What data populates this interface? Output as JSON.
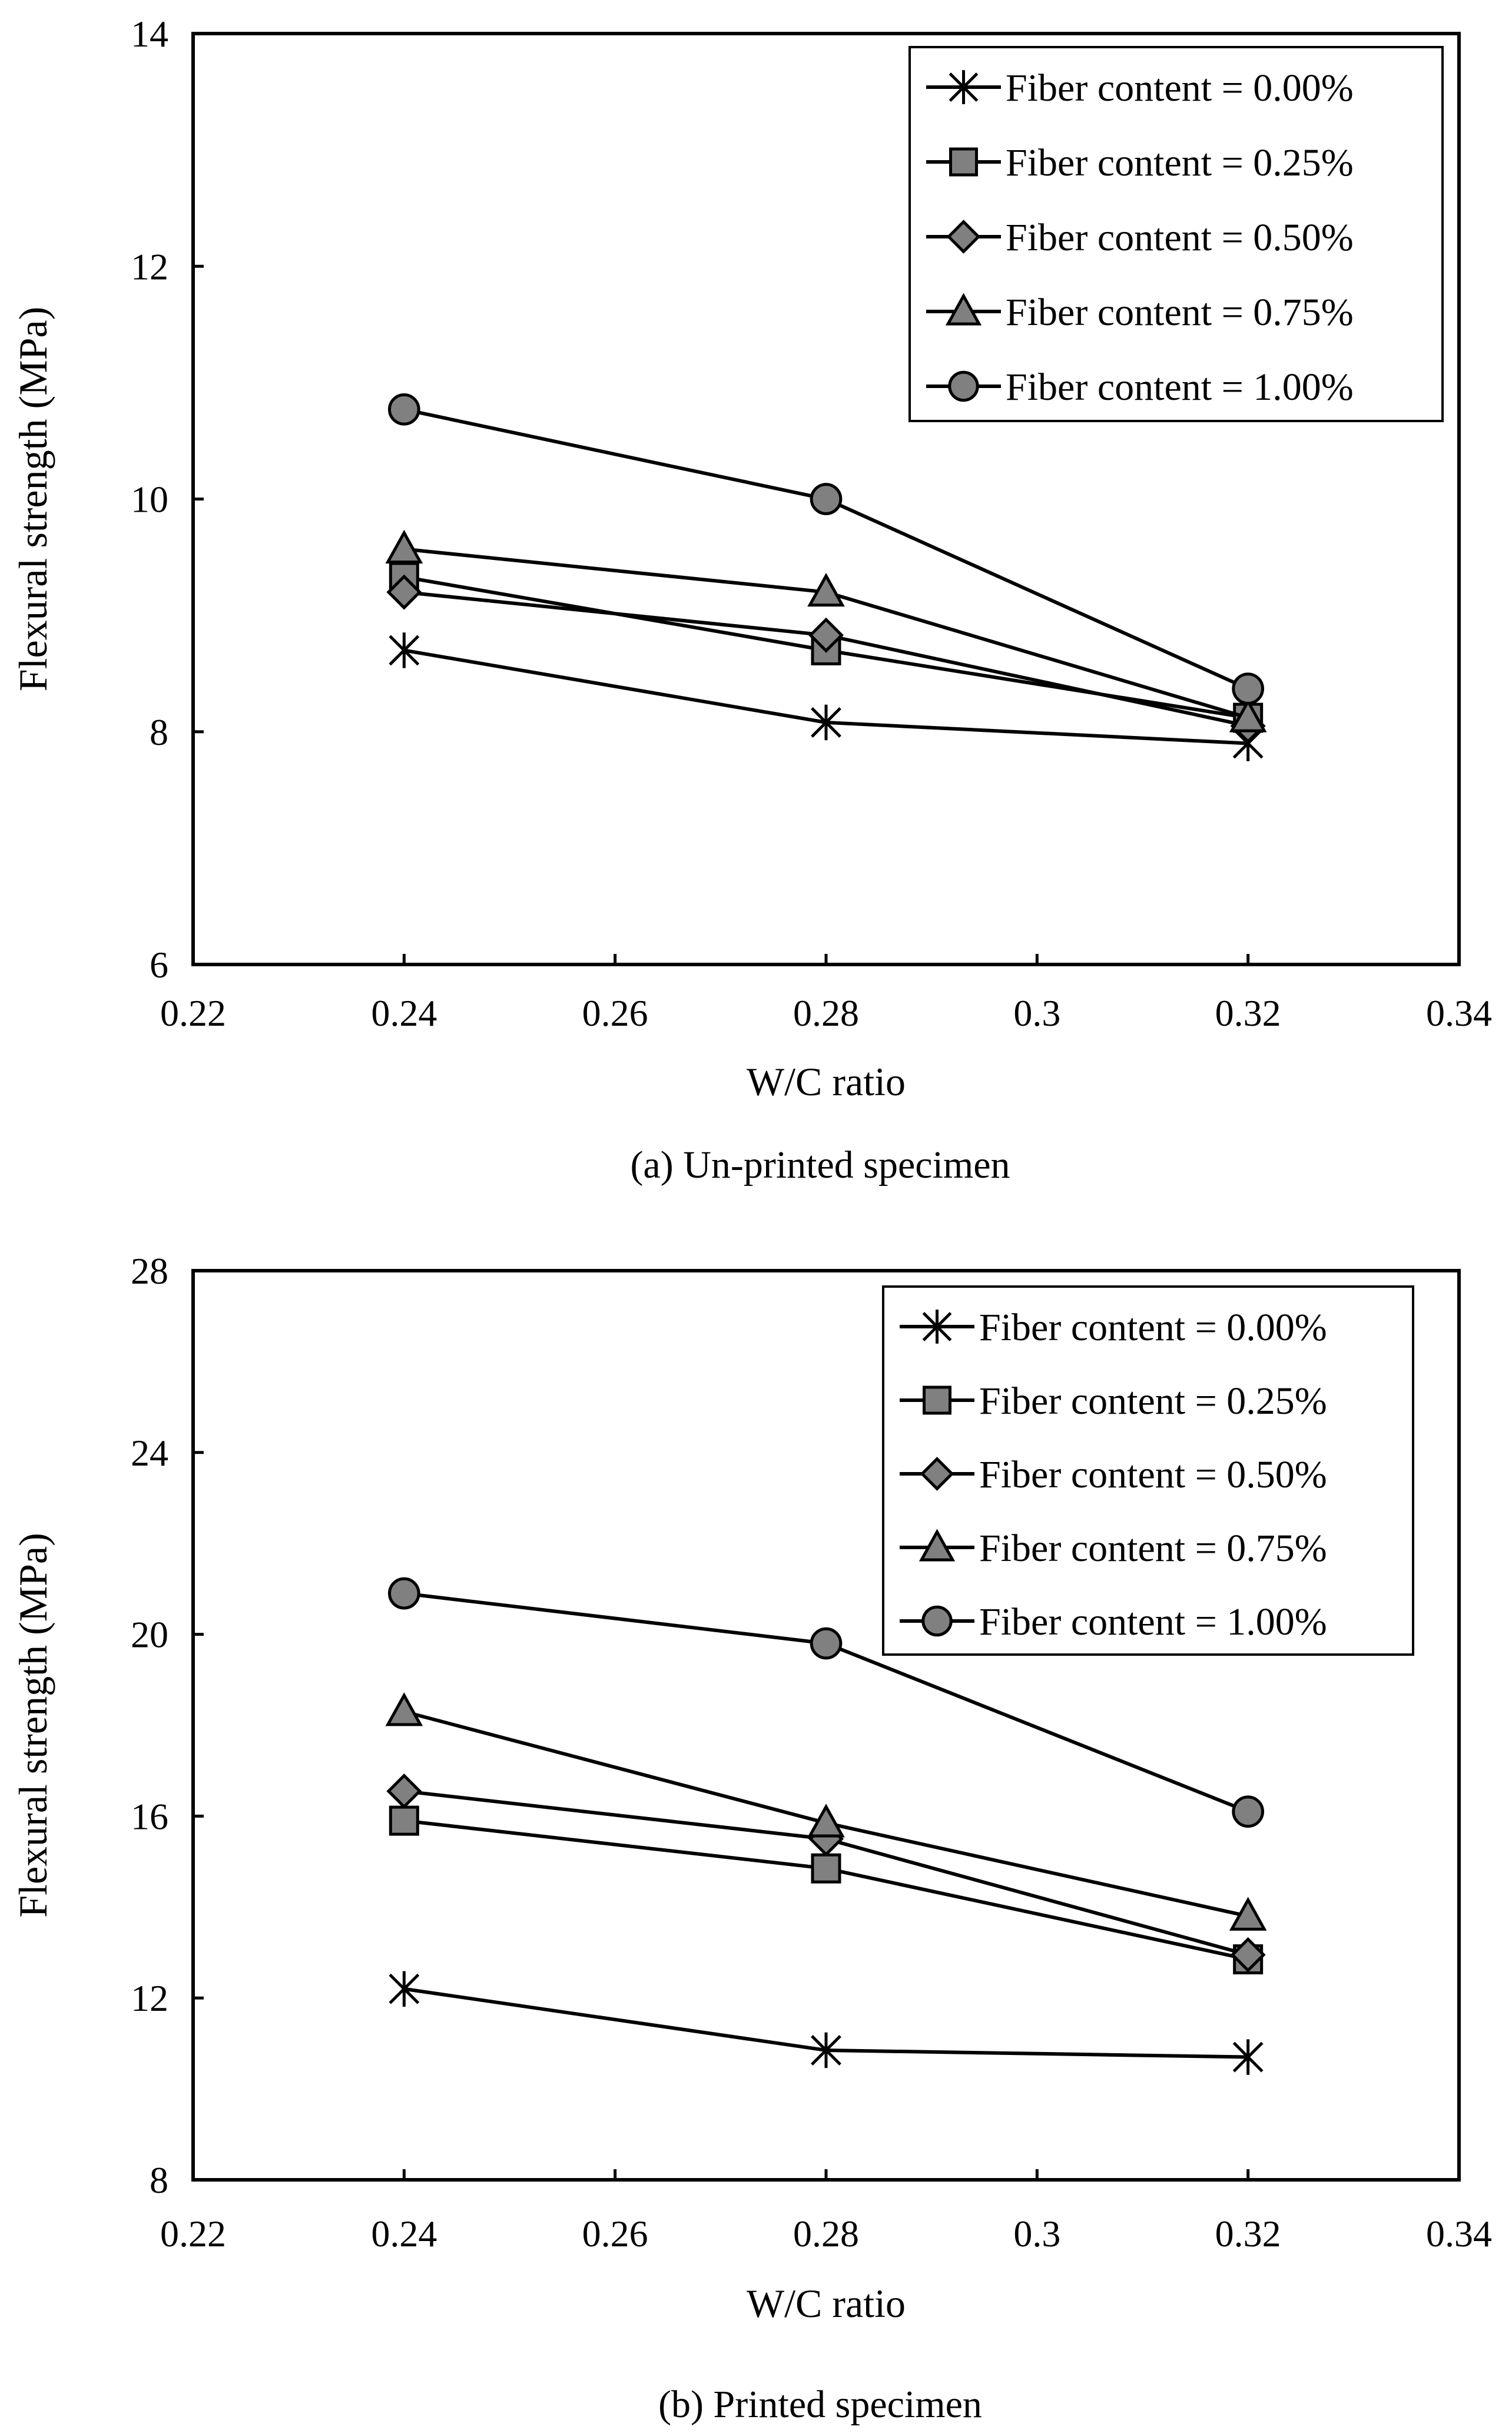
{
  "chart_data": [
    {
      "type": "line",
      "caption": "(a) Un-printed specimen",
      "xlabel": "W/C ratio",
      "ylabel": "Flexural strength (MPa)",
      "xlim": [
        0.22,
        0.34
      ],
      "ylim": [
        6,
        14
      ],
      "xticks": [
        "0.22",
        "0.24",
        "0.26",
        "0.28",
        "0.3",
        "0.32",
        "0.34"
      ],
      "yticks": [
        "6",
        "8",
        "10",
        "12",
        "14"
      ],
      "x": [
        0.24,
        0.28,
        0.32
      ],
      "legend_position": "top-right",
      "series": [
        {
          "name": "Fiber content = 0.00%",
          "marker": "asterisk",
          "values": [
            8.7,
            8.08,
            7.9
          ]
        },
        {
          "name": "Fiber content = 0.25%",
          "marker": "square",
          "values": [
            9.33,
            8.7,
            8.12
          ]
        },
        {
          "name": "Fiber content = 0.50%",
          "marker": "diamond",
          "values": [
            9.2,
            8.83,
            8.05
          ]
        },
        {
          "name": "Fiber content = 0.75%",
          "marker": "triangle",
          "values": [
            9.57,
            9.2,
            8.12
          ]
        },
        {
          "name": "Fiber content = 1.00%",
          "marker": "circle",
          "values": [
            10.77,
            10.0,
            8.37
          ]
        }
      ]
    },
    {
      "type": "line",
      "caption": "(b) Printed specimen",
      "xlabel": "W/C ratio",
      "ylabel": "Flexural strength (MPa)",
      "xlim": [
        0.22,
        0.34
      ],
      "ylim": [
        8,
        28
      ],
      "xticks": [
        "0.22",
        "0.24",
        "0.26",
        "0.28",
        "0.3",
        "0.32",
        "0.34"
      ],
      "yticks": [
        "8",
        "12",
        "16",
        "20",
        "24",
        "28"
      ],
      "x": [
        0.24,
        0.28,
        0.32
      ],
      "legend_position": "top-right",
      "series": [
        {
          "name": "Fiber content = 0.00%",
          "marker": "asterisk",
          "values": [
            12.2,
            10.85,
            10.7
          ]
        },
        {
          "name": "Fiber content = 0.25%",
          "marker": "square",
          "values": [
            15.9,
            14.85,
            12.85
          ]
        },
        {
          "name": "Fiber content = 0.50%",
          "marker": "diamond",
          "values": [
            16.55,
            15.5,
            12.95
          ]
        },
        {
          "name": "Fiber content = 0.75%",
          "marker": "triangle",
          "values": [
            18.3,
            15.85,
            13.8
          ]
        },
        {
          "name": "Fiber content = 1.00%",
          "marker": "circle",
          "values": [
            20.9,
            19.8,
            16.1
          ]
        }
      ]
    }
  ],
  "colors": {
    "line": "#000000",
    "marker_fill": "#808080",
    "background": "#ffffff"
  }
}
